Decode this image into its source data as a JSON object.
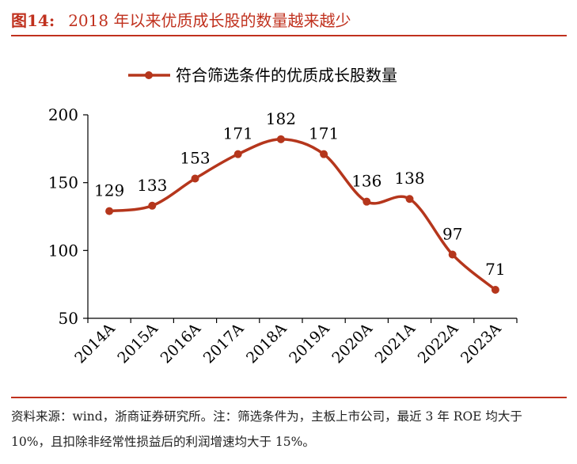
{
  "header": {
    "figure_number": "图14:",
    "title": "2018 年以来优质成长股的数量越来越少"
  },
  "chart_data": {
    "type": "line",
    "categories": [
      "2014A",
      "2015A",
      "2016A",
      "2017A",
      "2018A",
      "2019A",
      "2020A",
      "2021A",
      "2022A",
      "2023A"
    ],
    "series": [
      {
        "name": "符合筛选条件的优质成长股数量",
        "values": [
          129,
          133,
          153,
          171,
          182,
          171,
          136,
          138,
          97,
          71
        ]
      }
    ],
    "yticks": [
      "50",
      "100",
      "150",
      "200"
    ],
    "ylim": [
      50,
      200
    ],
    "grid": false,
    "legend": "top-center",
    "colors": {
      "line": "#b5361c"
    }
  },
  "footer": {
    "note": "资料来源：wind，浙商证券研究所。注：筛选条件为，主板上市公司，最近 3 年 ROE 均大于 10%，且扣除非经常性损益后的利润增速均大于 15%。"
  }
}
